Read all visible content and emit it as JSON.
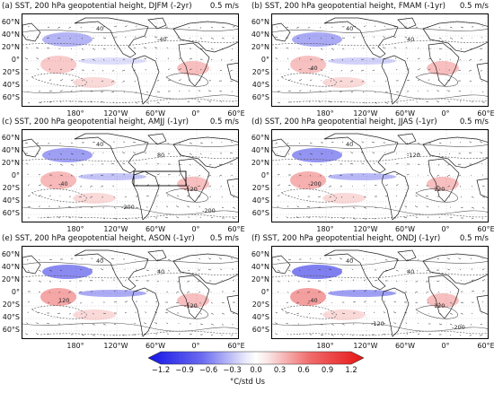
{
  "panels": [
    {
      "label": "(a)   SST, 200 hPa geopotential height, DJFM (-2yr)",
      "scale": "0.5 m/s",
      "box": false,
      "contours": [
        "40",
        "-40"
      ]
    },
    {
      "label": "(b)   SST, 200 hPa geopotential height, FMAM (-1yr)",
      "scale": "0.5 m/s",
      "box": false,
      "contours": [
        "40",
        "40",
        "-40"
      ]
    },
    {
      "label": "(c)   SST, 200 hPa geopotential height, AMJJ (-1yr)",
      "scale": "0.5 m/s",
      "box": true,
      "contours": [
        "40",
        "80",
        "-40",
        "-120",
        "-200",
        "-200"
      ]
    },
    {
      "label": "(d)   SST, 200 hPa geopotential height, JJAS (-1yr)",
      "scale": "0.5 m/s",
      "box": false,
      "contours": [
        "40",
        "-120",
        "-200",
        "120"
      ]
    },
    {
      "label": "(e)   SST, 200 hPa geopotential height, ASON (-1yr)",
      "scale": "0.5 m/s",
      "box": false,
      "contours": [
        "40",
        "40",
        "120",
        "-120"
      ]
    },
    {
      "label": "(f)   SST, 200 hPa geopotential height, ONDJ (-1yr)",
      "scale": "0.5 m/s",
      "box": false,
      "contours": [
        "40",
        "40",
        "-40",
        "120",
        "-120",
        "-200"
      ]
    }
  ],
  "lat_labels": [
    "60°N",
    "40°N",
    "20°N",
    "0°",
    "20°S",
    "40°S",
    "60°S"
  ],
  "lon_labels": [
    "180°",
    "120°W",
    "60°W",
    "0°",
    "60°E"
  ],
  "colorbar": {
    "ticks": [
      "−1.2",
      "−0.9",
      "−0.6",
      "−0.3",
      "0.0",
      "0.3",
      "0.6",
      "0.9",
      "1.2"
    ],
    "unit": "°C/std Us",
    "min": -1.2,
    "max": 1.2
  },
  "colors": {
    "negative": "#2a2ae6",
    "positive": "#e62a2a"
  }
}
